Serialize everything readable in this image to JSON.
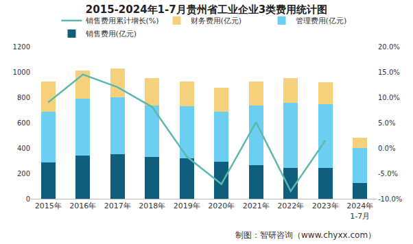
{
  "chart_data": {
    "type": "bar",
    "title": "2015-2024年1-7月贵州省工业企业3类费用统计图",
    "categories": [
      "2015年",
      "2016年",
      "2017年",
      "2018年",
      "2019年",
      "2020年",
      "2021年",
      "2022年",
      "2023年",
      "2024年\n1-7月"
    ],
    "stacked": true,
    "grid": false,
    "legend": "top",
    "series": [
      {
        "name": "销售费用(亿元)",
        "type": "bar",
        "color": "#0f5e7c",
        "values": [
          288,
          343,
          349,
          330,
          318,
          294,
          263,
          245,
          245,
          122
        ]
      },
      {
        "name": "管理费用(亿元)",
        "type": "bar",
        "color": "#6ccff2",
        "values": [
          398,
          447,
          453,
          404,
          410,
          392,
          471,
          514,
          502,
          276
        ]
      },
      {
        "name": "财务费用(亿元)",
        "type": "bar",
        "color": "#f6d17c",
        "values": [
          238,
          220,
          226,
          215,
          196,
          189,
          190,
          190,
          171,
          85
        ]
      },
      {
        "name": "销售费用累计增长(%)",
        "type": "line",
        "axis": "y2",
        "color": "#5db7b0",
        "values": [
          9.0,
          14.5,
          12.0,
          8.1,
          -1.7,
          -7.1,
          5.1,
          -8.5,
          1.5,
          null
        ]
      }
    ],
    "ylim": [
      0,
      1200
    ],
    "yticks": [
      0,
      200,
      400,
      600,
      800,
      1000,
      1200
    ],
    "y2lim": [
      -10,
      20
    ],
    "y2ticks": [
      {
        "value": -10,
        "label": "-10.0%"
      },
      {
        "value": -5,
        "label": "-5.0%"
      },
      {
        "value": 0,
        "label": "0.0%"
      },
      {
        "value": 5,
        "label": "5.0%"
      },
      {
        "value": 10,
        "label": "10.0%"
      },
      {
        "value": 15,
        "label": "15.0%"
      },
      {
        "value": 20,
        "label": "20.0%"
      }
    ],
    "annotations": [
      "制图：智研咨询（www.chyxx.com）"
    ]
  }
}
